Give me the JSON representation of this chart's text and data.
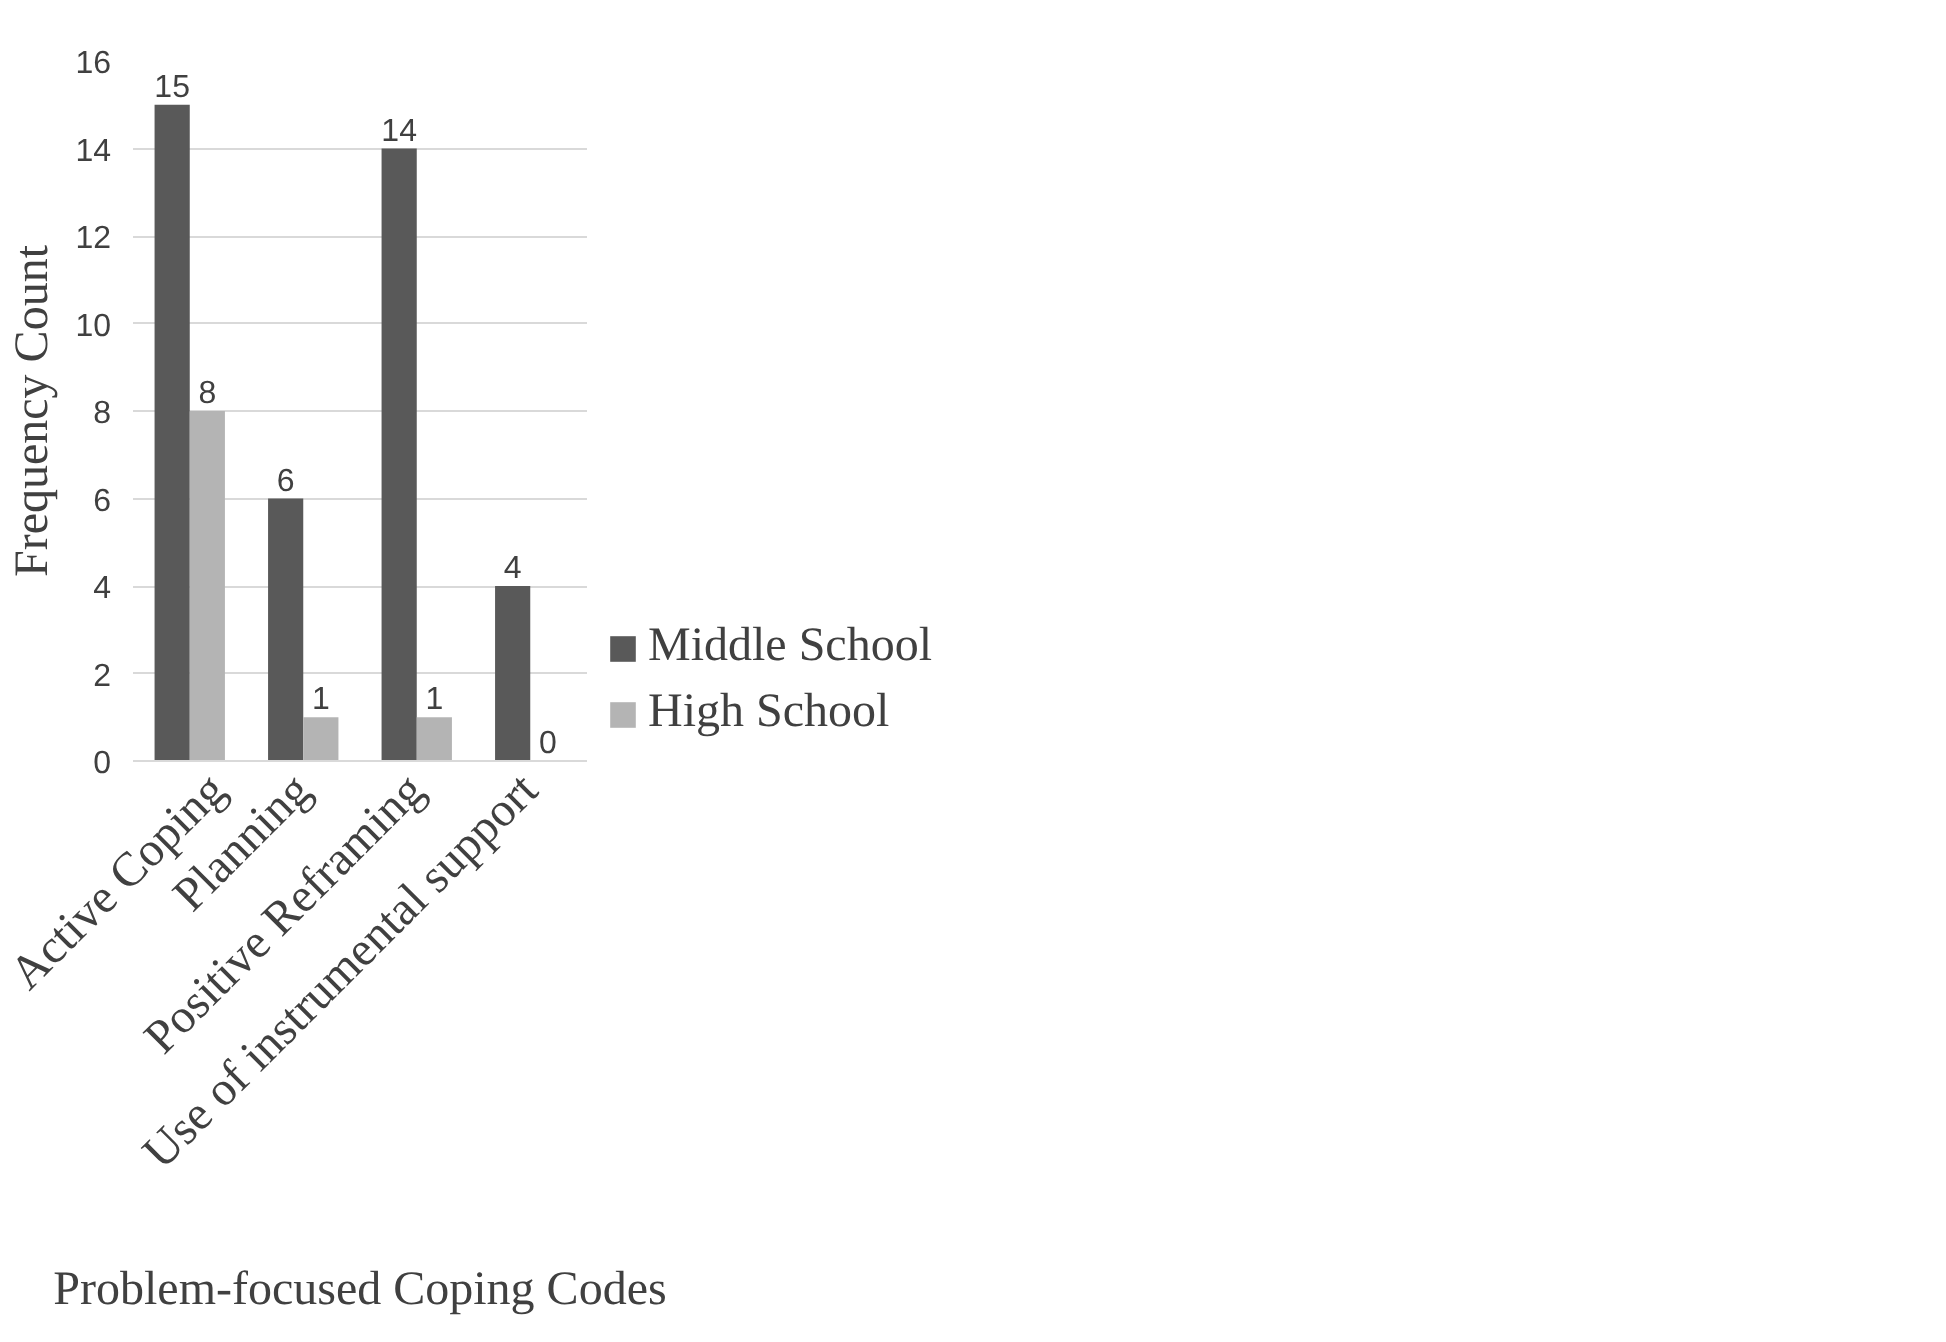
{
  "chart_data": {
    "type": "bar",
    "xlabel": "Problem-focused Coping Codes",
    "ylabel": "Frequency Count",
    "categories": [
      "Active Coping",
      "Planning",
      "Positive Reframing",
      "Use of instrumental support"
    ],
    "series": [
      {
        "name": "Middle School",
        "color": "#595959",
        "values": [
          15,
          6,
          14,
          4
        ]
      },
      {
        "name": "High School",
        "color": "#b4b4b4",
        "values": [
          8,
          1,
          1,
          0
        ]
      }
    ],
    "ylim": [
      0,
      16
    ],
    "yticks": [
      0,
      2,
      4,
      6,
      8,
      10,
      12,
      14,
      16
    ],
    "grid": "y",
    "legend": "right",
    "data_labels": true
  }
}
